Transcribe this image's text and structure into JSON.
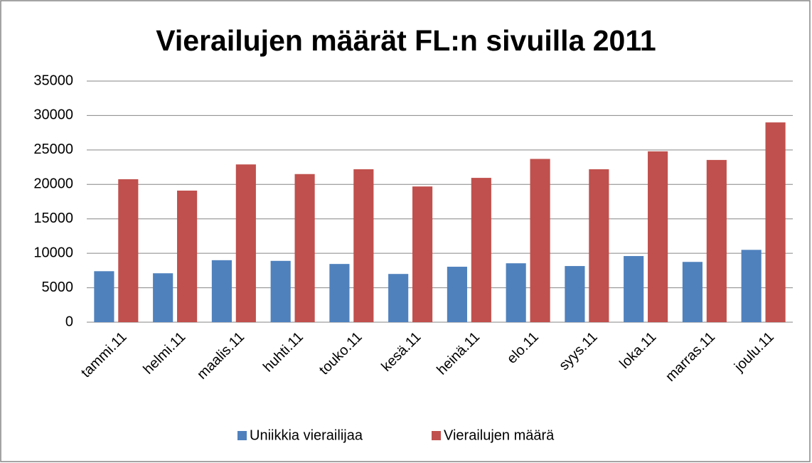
{
  "chart_data": {
    "type": "bar",
    "title": "Vierailujen määrät FL:n sivuilla 2011",
    "categories": [
      "tammi.11",
      "helmi.11",
      "maalis.11",
      "huhti.11",
      "touko.11",
      "kesä.11",
      "heinä.11",
      "elo.11",
      "syys.11",
      "loka.11",
      "marras.11",
      "joulu.11"
    ],
    "series": [
      {
        "name": "Uniikkia vierailijaa",
        "color": "#4f81bd",
        "values": [
          7400,
          7100,
          9000,
          8900,
          8450,
          7000,
          8050,
          8550,
          8150,
          9600,
          8750,
          10500
        ]
      },
      {
        "name": "Vierailujen määrä",
        "color": "#c0504d",
        "values": [
          20750,
          19100,
          22900,
          21500,
          22200,
          19700,
          20950,
          23700,
          22200,
          24800,
          23550,
          29000
        ]
      }
    ],
    "ylim": [
      0,
      35000
    ],
    "yticks": [
      0,
      5000,
      10000,
      15000,
      20000,
      25000,
      30000,
      35000
    ],
    "grid": true,
    "legend": "bottom"
  }
}
